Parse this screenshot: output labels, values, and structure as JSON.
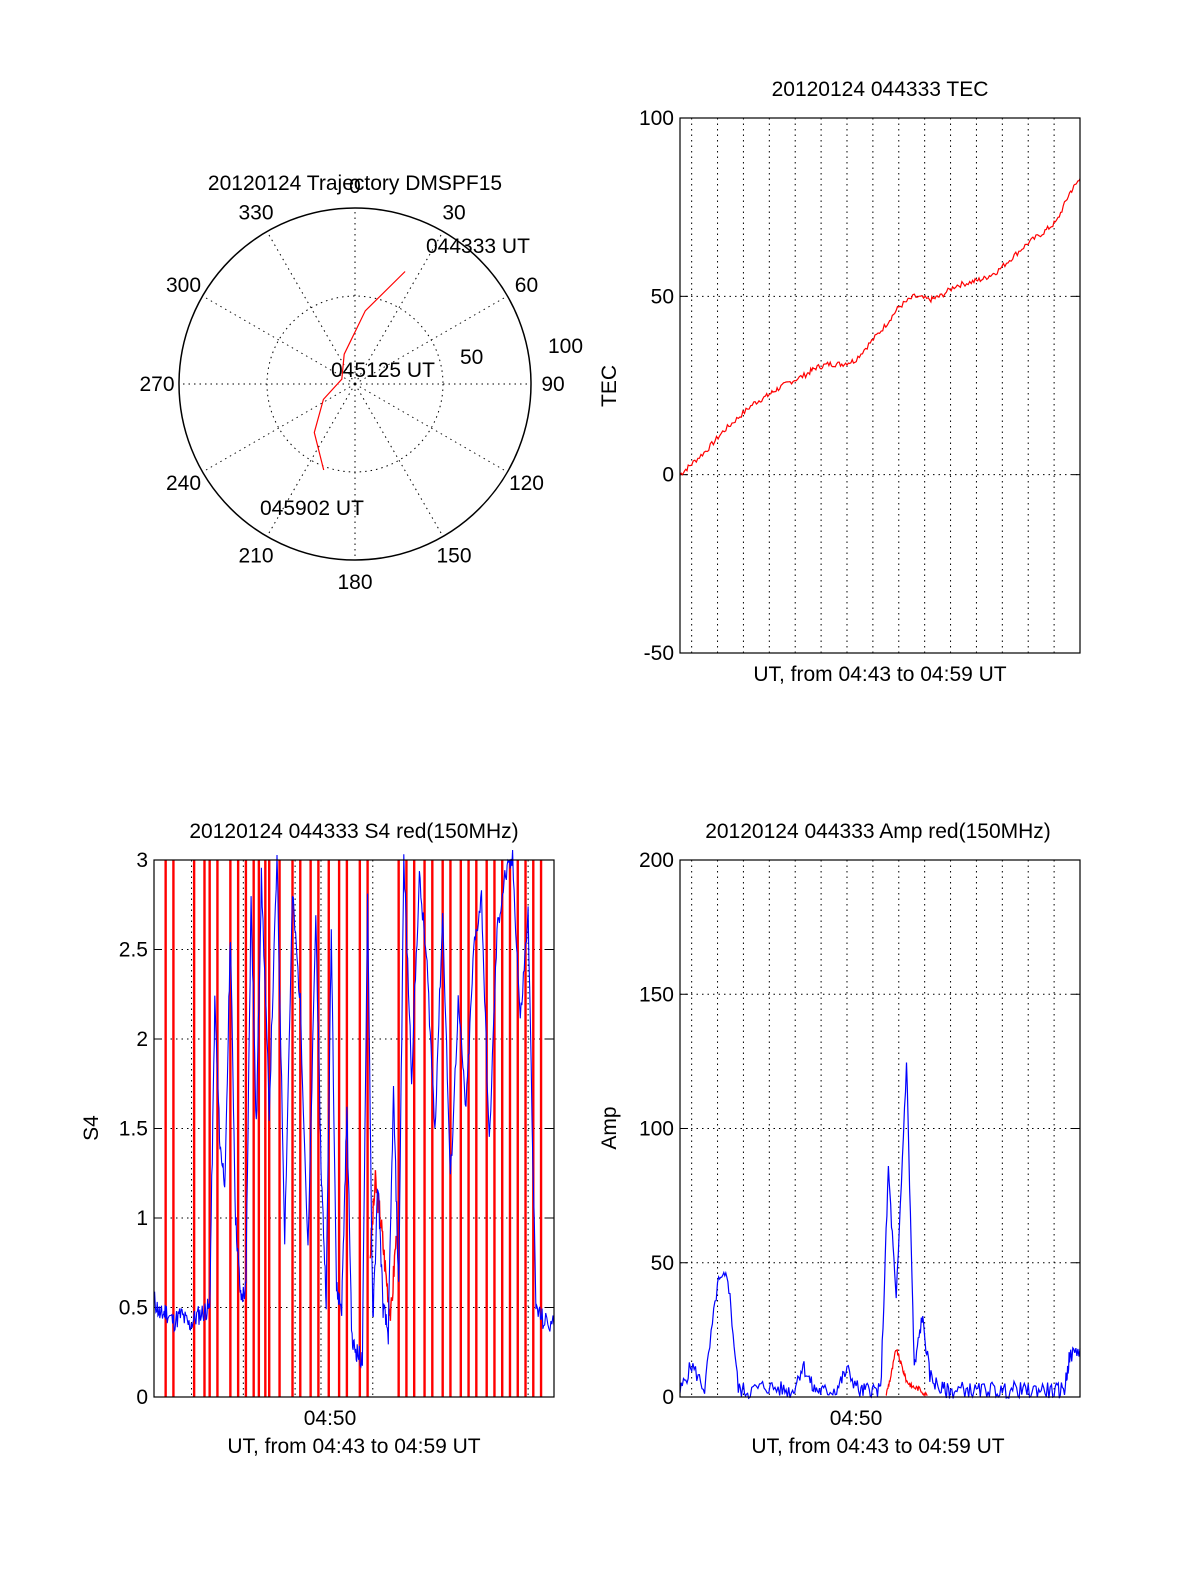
{
  "chart_data": [
    {
      "type": "polar",
      "title": "20120124 Trajectory DMSPF15",
      "angle_labels": [
        "0",
        "30",
        "60",
        "90",
        "120",
        "150",
        "180",
        "210",
        "240",
        "270",
        "300",
        "330"
      ],
      "radial_labels": [
        "50",
        "100"
      ],
      "radial_range": [
        0,
        100
      ],
      "grid": true,
      "trajectory": {
        "color": "#ff0000",
        "points": [
          {
            "az": 200,
            "r": 52
          },
          {
            "az": 220,
            "r": 36
          },
          {
            "az": 244,
            "r": 20
          },
          {
            "az": 290,
            "r": 8
          },
          {
            "az": 340,
            "r": 18
          },
          {
            "az": 8,
            "r": 42
          },
          {
            "az": 24,
            "r": 70
          }
        ]
      },
      "annotations": [
        "044333 UT",
        "045125 UT",
        "045902 UT"
      ]
    },
    {
      "type": "line",
      "title": "20120124 044333 TEC",
      "xlabel": "UT, from 04:43 to 04:59 UT",
      "ylabel": "TEC",
      "ylim": [
        -50,
        100
      ],
      "yticks": [
        "-50",
        "0",
        "50",
        "100"
      ],
      "xlim_min": [
        43.55,
        59.0
      ],
      "grid": true,
      "series": [
        {
          "color": "#ff0000",
          "x": [
            43.55,
            44.0,
            44.6,
            45.2,
            45.8,
            46.4,
            46.9,
            47.3,
            47.8,
            48.4,
            48.8,
            49.3,
            49.8,
            50.3,
            50.9,
            51.5,
            52.0,
            52.6,
            53.2,
            53.6,
            54.2,
            54.8,
            55.3,
            55.8,
            56.4,
            57.0,
            57.6,
            58.1,
            58.6,
            59.0
          ],
          "y": [
            0,
            3,
            7,
            12,
            16,
            20,
            22,
            24,
            26,
            28,
            30,
            31,
            31,
            32,
            37,
            42,
            47,
            50,
            49,
            50,
            53,
            54,
            55,
            57,
            61,
            65,
            68,
            71,
            79,
            83
          ]
        }
      ]
    },
    {
      "type": "line",
      "title": "20120124 044333 S4 red(150MHz)",
      "xlabel": "UT, from 04:43 to 04:59 UT",
      "ylabel": "S4",
      "ylim": [
        0,
        3
      ],
      "yticks": [
        "0",
        "0.5",
        "1",
        "1.5",
        "2",
        "2.5",
        "3"
      ],
      "xticks": [
        "04:50"
      ],
      "xlim_min": [
        43.55,
        59.0
      ],
      "grid": true,
      "series": [
        {
          "color": "#ff0000",
          "spikes_x": [
            44.0,
            44.3,
            45.1,
            45.5,
            45.7,
            46.0,
            46.5,
            46.8,
            47.1,
            47.4,
            47.6,
            47.85,
            48.0,
            48.4,
            48.9,
            49.2,
            49.6,
            49.9,
            50.3,
            50.7,
            51.0,
            51.5,
            51.8,
            53.0,
            53.3,
            53.6,
            54.0,
            54.3,
            54.7,
            55.0,
            55.4,
            55.7,
            56.0,
            56.4,
            56.7,
            57.0,
            57.3,
            57.6,
            57.9,
            58.2,
            58.5
          ],
          "segments": [
            {
              "x": [
                51.9,
                52.1,
                52.3,
                52.5,
                52.7,
                52.9
              ],
              "y": [
                0.8,
                1.2,
                1.0,
                0.7,
                0.45,
                0.9
              ]
            }
          ]
        },
        {
          "color": "#0000ff",
          "x": [
            43.55,
            43.8,
            44.0,
            44.3,
            44.6,
            44.9,
            45.2,
            45.5,
            45.7,
            45.9,
            46.1,
            46.3,
            46.5,
            46.7,
            46.9,
            47.1,
            47.3,
            47.5,
            47.7,
            48.0,
            48.3,
            48.6,
            48.9,
            49.2,
            49.5,
            49.8,
            50.0,
            50.2,
            50.4,
            50.6,
            50.8,
            51.0,
            51.2,
            51.4,
            51.6,
            51.8,
            52.0,
            52.2,
            52.4,
            52.6,
            52.8,
            53.0,
            53.2,
            53.5,
            53.8,
            54.1,
            54.4,
            54.7,
            55.0,
            55.3,
            55.6,
            55.9,
            56.2,
            56.5,
            56.8,
            57.1,
            57.4,
            57.7,
            58.0,
            58.3,
            58.6,
            59.0
          ],
          "y": [
            0.55,
            0.45,
            0.48,
            0.42,
            0.46,
            0.4,
            0.45,
            0.48,
            0.5,
            2.2,
            1.4,
            1.2,
            2.6,
            1.0,
            0.55,
            0.6,
            2.8,
            1.5,
            2.9,
            1.6,
            3.0,
            0.9,
            2.8,
            2.2,
            0.8,
            2.7,
            1.3,
            0.55,
            2.6,
            0.6,
            0.5,
            1.6,
            0.3,
            0.25,
            0.2,
            2.8,
            0.4,
            1.2,
            0.5,
            0.35,
            1.7,
            0.6,
            3.0,
            1.8,
            2.9,
            2.4,
            1.5,
            2.7,
            1.2,
            2.2,
            1.6,
            2.5,
            2.8,
            1.4,
            2.6,
            2.9,
            3.0,
            2.1,
            2.7,
            0.5,
            0.42,
            0.4
          ]
        }
      ]
    },
    {
      "type": "line",
      "title": "20120124 044333 Amp red(150MHz)",
      "xlabel": "UT, from 04:43 to 04:59 UT",
      "ylabel": "Amp",
      "ylim": [
        0,
        200
      ],
      "yticks": [
        "0",
        "50",
        "100",
        "150",
        "200"
      ],
      "xticks": [
        "04:50"
      ],
      "xlim_min": [
        43.55,
        59.0
      ],
      "grid": true,
      "series": [
        {
          "color": "#0000ff",
          "x": [
            43.55,
            44.0,
            44.5,
            45.0,
            45.4,
            45.8,
            46.2,
            46.8,
            47.4,
            47.9,
            48.3,
            48.7,
            49.1,
            49.6,
            50.0,
            50.5,
            50.9,
            51.3,
            51.6,
            51.9,
            52.3,
            52.6,
            52.9,
            53.2,
            53.6,
            54.0,
            54.5,
            55.0,
            55.5,
            56.0,
            56.5,
            57.0,
            57.5,
            58.0,
            58.4,
            58.6,
            59.0
          ],
          "y": [
            2,
            12,
            3,
            42,
            45,
            3,
            2,
            4,
            3,
            2,
            12,
            3,
            2,
            3,
            10,
            2,
            3,
            2,
            85,
            35,
            125,
            10,
            30,
            8,
            3,
            2,
            3,
            2,
            3,
            2,
            3,
            2,
            3,
            2,
            3,
            15,
            18
          ]
        },
        {
          "color": "#ff0000",
          "x": [
            51.5,
            51.7,
            51.9,
            52.1,
            52.3,
            52.5,
            52.8,
            53.1
          ],
          "y": [
            0.5,
            8,
            18,
            12,
            6,
            4,
            3,
            0.5
          ]
        }
      ]
    }
  ]
}
